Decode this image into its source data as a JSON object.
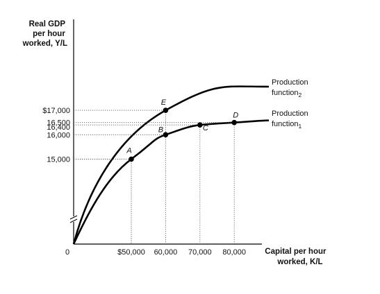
{
  "chart_data": {
    "type": "line",
    "ylabel_lines": [
      "Real GDP",
      "per hour",
      "worked, Y/L"
    ],
    "xlabel_lines": [
      "Capital per hour",
      "worked, K/L"
    ],
    "origin_label": "0",
    "axis_break": "y",
    "x_ticks": [
      {
        "value": 50000,
        "label": "$50,000"
      },
      {
        "value": 60000,
        "label": "60,000"
      },
      {
        "value": 70000,
        "label": "70,000"
      },
      {
        "value": 80000,
        "label": "80,000"
      }
    ],
    "y_ticks": [
      {
        "value": 17000,
        "label": "$17,000"
      },
      {
        "value": 16500,
        "label": "16,500"
      },
      {
        "value": 16400,
        "label": "16,400"
      },
      {
        "value": 16000,
        "label": "16,000"
      },
      {
        "value": 15000,
        "label": "15,000"
      }
    ],
    "series": [
      {
        "name_main": "Production",
        "name_line2": "function",
        "subscript": "2"
      },
      {
        "name_main": "Production",
        "name_line2": "function",
        "subscript": "1"
      }
    ],
    "points": [
      {
        "label": "A",
        "x": 50000,
        "y": 15000,
        "series": 1
      },
      {
        "label": "B",
        "x": 60000,
        "y": 16000,
        "series": 1
      },
      {
        "label": "C",
        "x": 70000,
        "y": 16400,
        "series": 1
      },
      {
        "label": "D",
        "x": 80000,
        "y": 16500,
        "series": 1
      },
      {
        "label": "E",
        "x": 60000,
        "y": 17000,
        "series": 0
      }
    ],
    "grid": false
  }
}
